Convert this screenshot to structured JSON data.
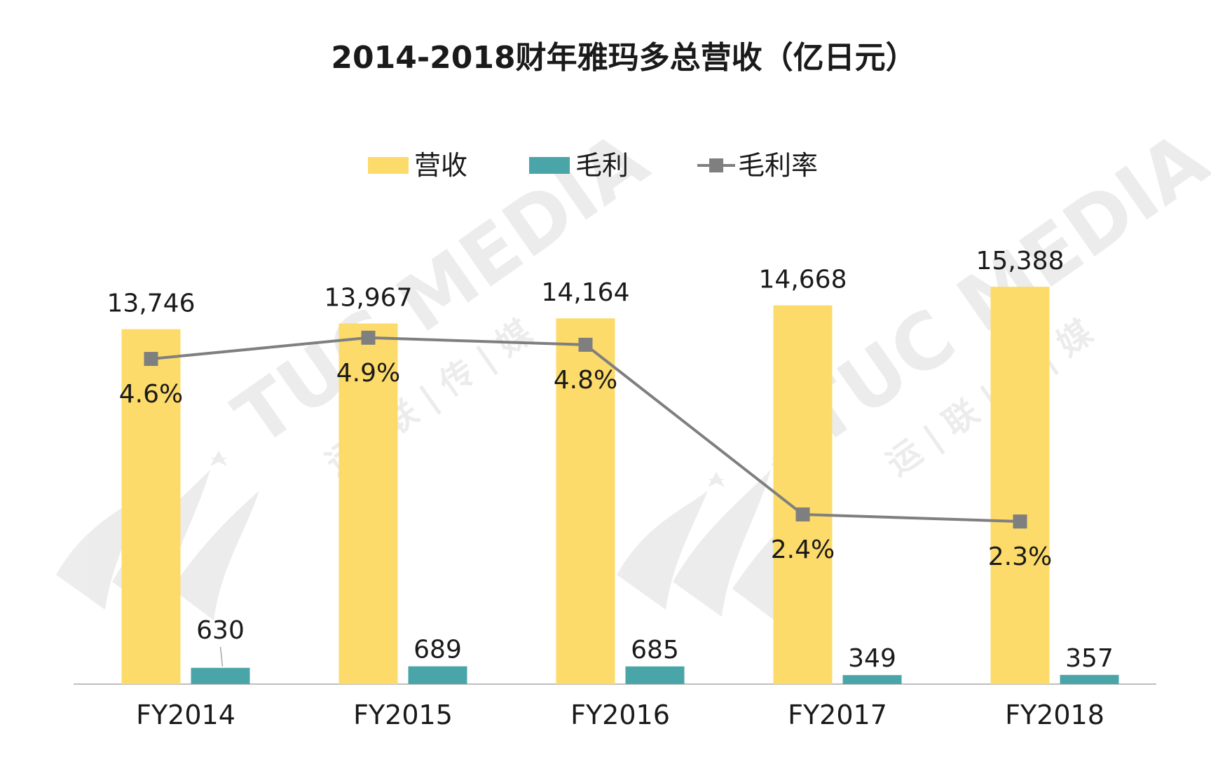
{
  "chart_data": {
    "type": "bar",
    "title": "2014-2018财年雅玛多总营收（亿日元）",
    "xlabel": "",
    "ylabel": "",
    "categories": [
      "FY2014",
      "FY2015",
      "FY2016",
      "FY2017",
      "FY2018"
    ],
    "series": [
      {
        "name": "营收",
        "kind": "bar",
        "color": "#FCDB6A",
        "values": [
          13746,
          13967,
          14164,
          14668,
          15388
        ],
        "labels": [
          "13,746",
          "13,967",
          "14,164",
          "14,668",
          "15,388"
        ]
      },
      {
        "name": "毛利",
        "kind": "bar",
        "color": "#4AA5A8",
        "values": [
          630,
          689,
          685,
          349,
          357
        ],
        "labels": [
          "630",
          "689",
          "685",
          "349",
          "357"
        ]
      },
      {
        "name": "毛利率",
        "kind": "line",
        "color": "#7F7F7F",
        "marker": "square",
        "values": [
          4.6,
          4.9,
          4.8,
          2.4,
          2.3
        ],
        "labels": [
          "4.6%",
          "4.9%",
          "4.8%",
          "2.4%",
          "2.3%"
        ]
      }
    ],
    "ylim": [
      0,
      16000
    ],
    "y2lim": [
      0,
      7
    ],
    "grid": false,
    "legend": "top-center"
  },
  "watermark": {
    "brand": "TUC MEDIA",
    "sub": "运 | 联 | 传 | 媒"
  }
}
